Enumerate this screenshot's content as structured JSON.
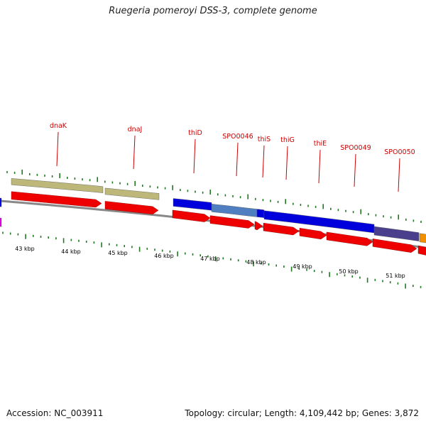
{
  "title": "Ruegeria pomeroyi DSS-3, complete genome",
  "footer": {
    "accession": "Accession: NC_003911",
    "summary": "Topology: circular; Length: 4,109,442 bp; Genes: 3,872"
  },
  "colors": {
    "backbone": "#888888",
    "cds_forward": "#ee0000",
    "cog_olive": "#bdb77a",
    "cog_blue": "#0000dd",
    "cog_steel": "#4f7fc0",
    "cog_slate": "#4a3f8c",
    "cog_orange": "#f09000",
    "cog_magenta": "#dd00dd",
    "tick": "#1f7a1f",
    "gene_label": "#cc0000"
  },
  "gene_labels": [
    "dnaK",
    "dnaJ",
    "thiD",
    "SPO0046",
    "thiS",
    "thiG",
    "thiE",
    "SPO0049",
    "SPO0050"
  ],
  "kbp_labels": [
    "43 kbp",
    "44 kbp",
    "45 kbp",
    "46 kbp",
    "47 kbp",
    "48 kbp",
    "49 kbp",
    "50 kbp",
    "51 kbp"
  ]
}
